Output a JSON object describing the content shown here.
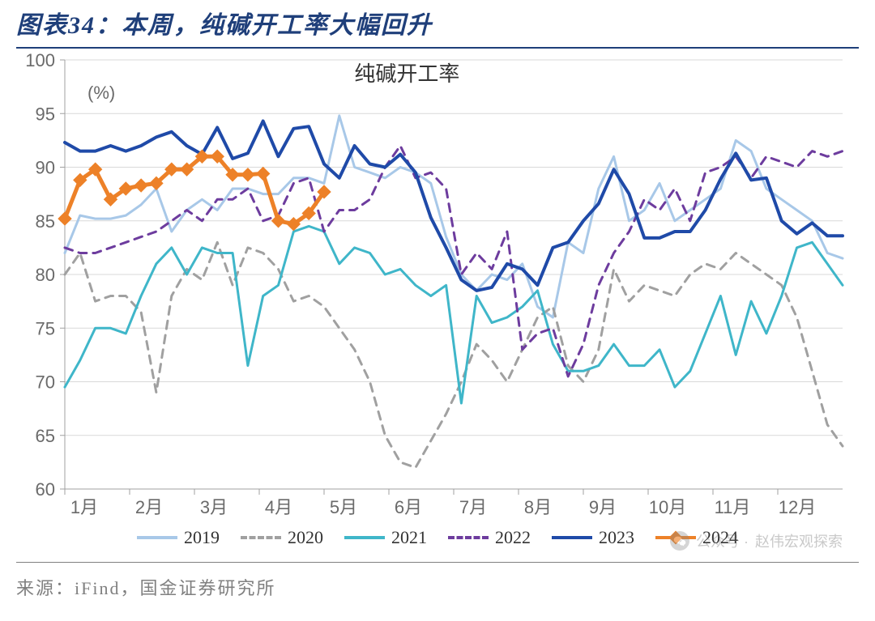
{
  "header": {
    "title": "图表34：本周，纯碱开工率大幅回升"
  },
  "footer": {
    "source": "来源：iFind，国金证券研究所"
  },
  "watermark": {
    "prefix": "公众号 ·",
    "name": "赵伟宏观探索"
  },
  "chart": {
    "type": "line",
    "title": "纯碱开工率",
    "unit_label": "(%)",
    "ylim": [
      60,
      100
    ],
    "ytick_step": 5,
    "x_ticks": [
      "1月",
      "2月",
      "3月",
      "4月",
      "5月",
      "6月",
      "7月",
      "8月",
      "9月",
      "10月",
      "11月",
      "12月"
    ],
    "x_points_per_year": 52,
    "background_color": "#ffffff",
    "grid_color": "#d9d9d9",
    "label_fontsize": 22,
    "title_fontsize": 26,
    "axis_text_color": "#6a6a6a",
    "series": [
      {
        "name": "2019",
        "color": "#a8c8e8",
        "line_style": "solid",
        "width": 3,
        "marker": "none",
        "values": [
          82,
          85.5,
          85.2,
          85.2,
          85.5,
          86.5,
          88,
          84,
          86,
          87,
          86,
          88,
          88,
          87.5,
          87.5,
          89,
          89,
          88.5,
          94.8,
          90,
          89.5,
          89,
          90,
          89.5,
          88.5,
          83.5,
          80,
          78.5,
          80,
          79.5,
          81,
          77,
          76,
          83,
          82,
          88,
          91,
          85,
          86,
          88.5,
          85,
          86,
          87,
          88,
          92.5,
          91.5,
          88,
          87,
          86,
          85,
          82,
          81.5
        ]
      },
      {
        "name": "2020",
        "color": "#a0a0a0",
        "line_style": "dashed",
        "width": 3,
        "marker": "none",
        "values": [
          80,
          82,
          77.5,
          78,
          78,
          76.5,
          69,
          78,
          80.5,
          79.5,
          83,
          79,
          82.5,
          82,
          80.5,
          77.5,
          78,
          77,
          75,
          73,
          70,
          65,
          62.5,
          62,
          64.5,
          67,
          70,
          73.5,
          72,
          70,
          73,
          76,
          77,
          71.5,
          70,
          73,
          80.5,
          77.5,
          79,
          78.5,
          78,
          80,
          81,
          80.5,
          82,
          81,
          80,
          79,
          76,
          71,
          66,
          64
        ]
      },
      {
        "name": "2021",
        "color": "#3fb6c9",
        "line_style": "solid",
        "width": 3,
        "marker": "none",
        "values": [
          69.5,
          72,
          75,
          75,
          74.5,
          78,
          81,
          82.5,
          80,
          82.5,
          82,
          82,
          71.5,
          78,
          79,
          84,
          84.5,
          84,
          81,
          82.5,
          82,
          80,
          80.5,
          79,
          78,
          79,
          68,
          78,
          75.5,
          76,
          77,
          78.5,
          73.5,
          71,
          71,
          71.5,
          73.5,
          71.5,
          71.5,
          73,
          69.5,
          71,
          74.5,
          78,
          72.5,
          77.5,
          74.5,
          78,
          82.5,
          83,
          81,
          79
        ]
      },
      {
        "name": "2022",
        "color": "#6d3c9e",
        "line_style": "dashed",
        "width": 3,
        "marker": "none",
        "values": [
          82.5,
          82,
          82,
          82.5,
          83,
          83.5,
          84,
          85,
          86,
          85,
          87,
          87,
          88,
          85,
          85.5,
          88.5,
          89,
          84,
          86,
          86,
          87,
          90,
          92,
          89,
          89.5,
          88,
          80,
          82,
          80.5,
          84,
          73,
          74.5,
          75,
          70.5,
          73.5,
          79,
          82,
          84,
          87,
          86,
          88,
          85,
          89.5,
          90,
          91,
          89,
          91,
          90.5,
          90,
          91.5,
          91,
          91.5
        ]
      },
      {
        "name": "2023",
        "color": "#1f4aa8",
        "line_style": "solid",
        "width": 4,
        "marker": "none",
        "values": [
          92.3,
          91.5,
          91.5,
          92,
          91.5,
          92,
          92.8,
          93.3,
          92,
          91.2,
          93.7,
          90.8,
          91.3,
          94.3,
          91,
          93.6,
          93.8,
          90.3,
          89,
          92,
          90.3,
          90,
          91.2,
          89.5,
          85.3,
          82.5,
          79.5,
          78.5,
          78.8,
          81,
          80.5,
          79,
          82.5,
          83,
          85,
          86.6,
          89.8,
          87.5,
          83.4,
          83.4,
          84,
          84,
          86,
          88.9,
          91.3,
          88.8,
          89,
          85,
          83.8,
          84.8,
          83.6,
          83.6
        ]
      },
      {
        "name": "2024",
        "color": "#ed8128",
        "line_style": "solid",
        "width": 5,
        "marker": "diamond",
        "values": [
          85.2,
          88.8,
          89.8,
          87,
          88,
          88.3,
          88.5,
          89.8,
          89.8,
          91,
          91,
          89.3,
          89.3,
          89.4,
          85,
          84.7,
          85.7,
          87.7
        ]
      }
    ],
    "legend_order": [
      "2019",
      "2020",
      "2021",
      "2022",
      "2023",
      "2024"
    ]
  }
}
